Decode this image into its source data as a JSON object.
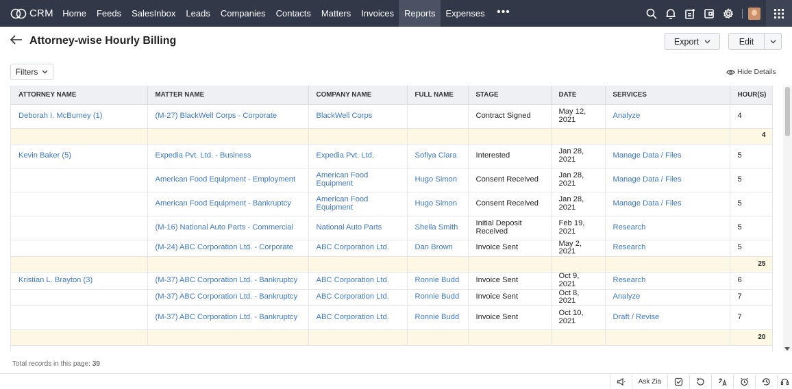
{
  "app": {
    "name": "CRM"
  },
  "nav": {
    "items": [
      {
        "label": "Home"
      },
      {
        "label": "Feeds"
      },
      {
        "label": "SalesInbox"
      },
      {
        "label": "Leads"
      },
      {
        "label": "Companies"
      },
      {
        "label": "Contacts"
      },
      {
        "label": "Matters"
      },
      {
        "label": "Invoices"
      },
      {
        "label": "Reports",
        "active": true
      },
      {
        "label": "Expenses"
      }
    ],
    "more": "•••"
  },
  "page": {
    "title": "Attorney-wise Hourly Billing",
    "export_label": "Export",
    "edit_label": "Edit",
    "filters_label": "Filters",
    "hide_details_label": "Hide Details"
  },
  "table": {
    "headers": [
      "ATTORNEY NAME",
      "MATTER NAME",
      "COMPANY NAME",
      "FULL NAME",
      "STAGE",
      "DATE",
      "SERVICES",
      "HOUR(S)"
    ],
    "rows": [
      {
        "type": "data",
        "cells": [
          "Deborah I. McBurney (1)",
          "(M-27) BlackWell Corps - Corporate",
          "BlackWell Corps",
          "",
          "Contract Signed",
          "May 12, 2021",
          "Analyze",
          "4"
        ]
      },
      {
        "type": "subtotal",
        "total": "4"
      },
      {
        "type": "data",
        "cells": [
          "Kevin Baker (5)",
          "Expedia Pvt. Ltd. - Business",
          "Expedia Pvt. Ltd.",
          "Sofiya Clara",
          "Interested",
          "Jan 28, 2021",
          "Manage Data / Files",
          "5"
        ]
      },
      {
        "type": "data",
        "cells": [
          "",
          "American Food Equipment - Employment",
          "American Food Equipment",
          "Hugo Simon",
          "Consent Received",
          "Jan 28, 2021",
          "Manage Data / Files",
          "5"
        ]
      },
      {
        "type": "data",
        "cells": [
          "",
          "American Food Equipment - Bankruptcy",
          "American Food Equipment",
          "Hugo Simon",
          "Consent Received",
          "Jan 28, 2021",
          "Manage Data / Files",
          "5"
        ]
      },
      {
        "type": "data",
        "cells": [
          "",
          "(M-16) National Auto Parts - Commercial",
          "National Auto Parts",
          "Sheila Smith",
          "Initial Deposit Received",
          "Feb 19, 2021",
          "Research",
          "5"
        ]
      },
      {
        "type": "data",
        "cells": [
          "",
          "(M-24) ABC Corporation Ltd. - Corporate",
          "ABC Corporation Ltd.",
          "Dan Brown",
          "Invoice Sent",
          "May 2, 2021",
          "Research",
          "5"
        ]
      },
      {
        "type": "subtotal",
        "total": "25"
      },
      {
        "type": "data",
        "cells": [
          "Kristian L. Brayton (3)",
          "(M-37) ABC Corporation Ltd. - Bankruptcy",
          "ABC Corporation Ltd.",
          "Ronnie Budd",
          "Invoice Sent",
          "Oct 9, 2021",
          "Research",
          "6"
        ]
      },
      {
        "type": "data",
        "cells": [
          "",
          "(M-37) ABC Corporation Ltd. - Bankruptcy",
          "ABC Corporation Ltd.",
          "Ronnie Budd",
          "Invoice Sent",
          "Oct 8, 2021",
          "Analyze",
          "7"
        ]
      },
      {
        "type": "data",
        "cells": [
          "",
          "(M-37) ABC Corporation Ltd. - Bankruptcy",
          "ABC Corporation Ltd.",
          "Ronnie Budd",
          "Invoice Sent",
          "Oct 10, 2021",
          "Draft / Revise",
          "7"
        ]
      },
      {
        "type": "subtotal",
        "total": "20"
      }
    ]
  },
  "footer": {
    "total_label": "Total records in this page:",
    "total_value": "39",
    "ask_zia": "Ask Zia"
  },
  "colors": {
    "nav_bg": "#313949",
    "link": "#3d78c9",
    "subtotal_bg": "#fdf8e3"
  }
}
